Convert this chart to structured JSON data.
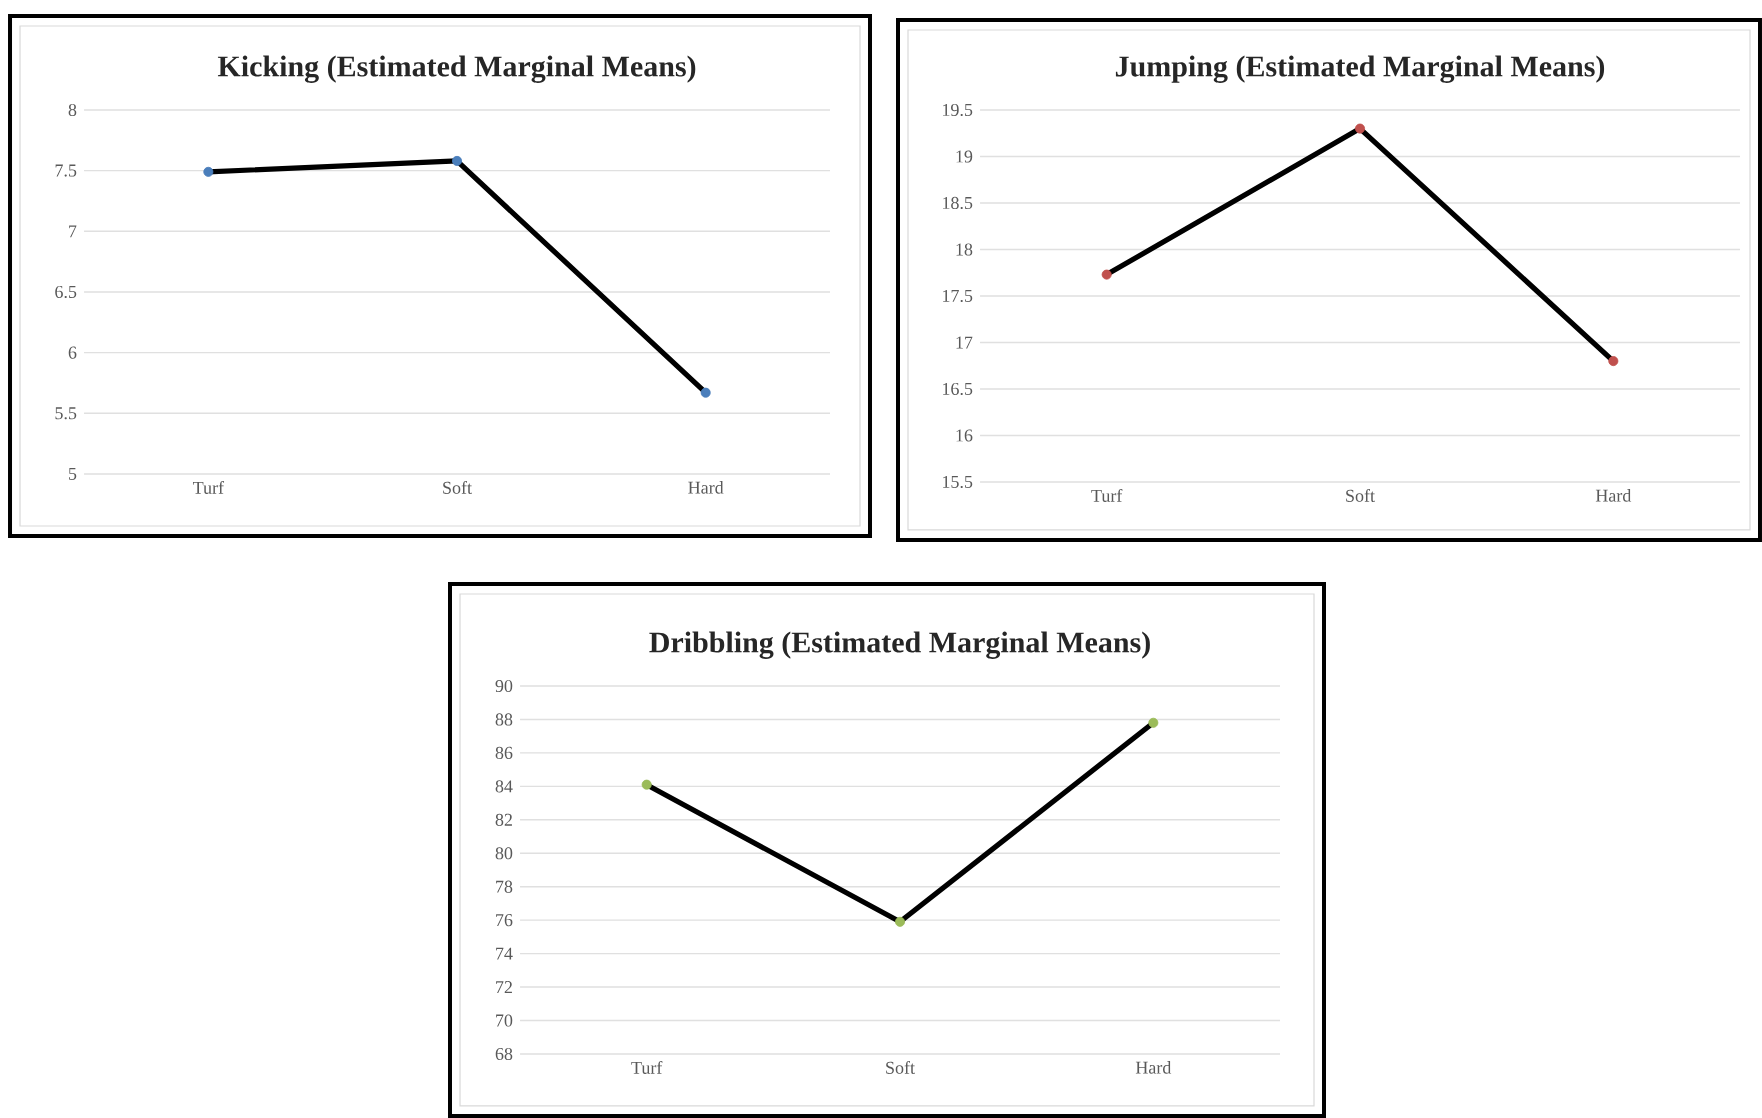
{
  "chart_data": [
    {
      "type": "line",
      "title": "Kicking (Estimated Marginal Means)",
      "categories": [
        "Turf",
        "Soft",
        "Hard"
      ],
      "series": [
        {
          "color": "#000000",
          "colors": [
            "#4a7ebb",
            "#4a7ebb",
            "#4a7ebb"
          ],
          "values": [
            7.49,
            7.58,
            5.67
          ]
        }
      ],
      "ylim": [
        5,
        8
      ],
      "yticks": [
        5,
        5.5,
        6,
        6.5,
        7,
        7.5,
        8
      ],
      "grid": "y",
      "marker": "circle",
      "line_style": "solid"
    },
    {
      "type": "line",
      "title": "Jumping (Estimated Marginal Means)",
      "categories": [
        "Turf",
        "Soft",
        "Hard"
      ],
      "series": [
        {
          "color": "#000000",
          "colors": [
            "#c0504d",
            "#c0504d",
            "#c0504d"
          ],
          "values": [
            17.73,
            19.3,
            16.8
          ]
        }
      ],
      "ylim": [
        15.5,
        19.5
      ],
      "yticks": [
        15.5,
        16,
        16.5,
        17,
        17.5,
        18,
        18.5,
        19,
        19.5
      ],
      "grid": "y",
      "marker": "circle",
      "line_style": "solid"
    },
    {
      "type": "line",
      "title": "Dribbling (Estimated Marginal Means)",
      "categories": [
        "Turf",
        "Soft",
        "Hard"
      ],
      "series": [
        {
          "color": "#000000",
          "colors": [
            "#9bbb59",
            "#9bbb59",
            "#9bbb59"
          ],
          "values": [
            84.1,
            75.9,
            87.8
          ]
        }
      ],
      "ylim": [
        68,
        90
      ],
      "yticks": [
        68,
        70,
        72,
        74,
        76,
        78,
        80,
        82,
        84,
        86,
        88,
        90
      ],
      "grid": "y",
      "marker": "circle",
      "line_style": "solid"
    }
  ]
}
